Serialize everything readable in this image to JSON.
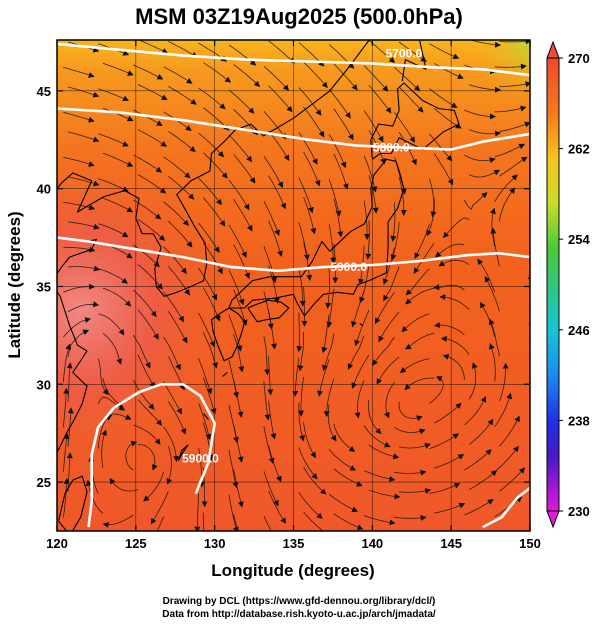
{
  "title": "MSM 03Z19Aug2025 (500.0hPa)",
  "xlabel": "Longitude (degrees)",
  "ylabel": "Latitude  (degrees)",
  "credits": [
    "Drawing by DCL (https://www.gfd-dennou.org/library/dcl/)",
    "Data from http://database.rish.kyoto-u.ac.jp/arch/jmadata/"
  ],
  "map": {
    "lon_range": [
      120,
      150
    ],
    "lat_range": [
      22.5,
      47.6
    ],
    "lon_ticks": [
      120,
      125,
      130,
      135,
      140,
      145,
      150
    ],
    "lat_ticks": [
      25,
      30,
      35,
      40,
      45
    ],
    "lon_tick_labels": [
      "120",
      "125",
      "130",
      "135",
      "140",
      "145",
      "150"
    ],
    "lat_tick_labels": [
      "25",
      "30",
      "35",
      "40",
      "45"
    ]
  },
  "colorbar": {
    "min": 230,
    "max": 270,
    "labels": [
      "270",
      "262",
      "254",
      "246",
      "238",
      "230"
    ],
    "label_values": [
      270,
      262,
      254,
      246,
      238,
      230
    ]
  },
  "contours": [
    {
      "label": "5700.0",
      "value": 5700,
      "label_lon": 142.0,
      "label_lat": 46.7,
      "points": [
        [
          120,
          47.4
        ],
        [
          124,
          47.1
        ],
        [
          128,
          46.8
        ],
        [
          132,
          46.6
        ],
        [
          136,
          46.5
        ],
        [
          140,
          46.4
        ],
        [
          144,
          46.2
        ],
        [
          147,
          46.1
        ],
        [
          150,
          45.8
        ]
      ]
    },
    {
      "label": "5800.0",
      "value": 5800,
      "label_lon": 141.2,
      "label_lat": 41.9,
      "points": [
        [
          120,
          44.1
        ],
        [
          124,
          43.9
        ],
        [
          128,
          43.5
        ],
        [
          132,
          43.0
        ],
        [
          136,
          42.5
        ],
        [
          139,
          42.2
        ],
        [
          142,
          42.1
        ],
        [
          145,
          42.0
        ],
        [
          147,
          42.4
        ],
        [
          150,
          42.8
        ]
      ]
    },
    {
      "label": "5900.0",
      "value": 5900,
      "label_lon": 138.5,
      "label_lat": 35.8,
      "points": [
        [
          120,
          37.5
        ],
        [
          122,
          37.3
        ],
        [
          125,
          36.9
        ],
        [
          128,
          36.5
        ],
        [
          131,
          36.0
        ],
        [
          134,
          35.8
        ],
        [
          137,
          36.0
        ],
        [
          140,
          36.1
        ],
        [
          143,
          36.3
        ],
        [
          146,
          36.6
        ],
        [
          148,
          36.7
        ],
        [
          150,
          36.5
        ]
      ]
    },
    {
      "label": "5900.0",
      "value": 5900,
      "label_lon": 129.1,
      "label_lat": 26.0,
      "points": [
        [
          128.8,
          24.4
        ],
        [
          129.6,
          26.0
        ],
        [
          130.0,
          28.0
        ],
        [
          129.1,
          29.4
        ],
        [
          128.0,
          30.0
        ],
        [
          126.6,
          30.0
        ],
        [
          125.2,
          29.6
        ],
        [
          123.6,
          28.8
        ],
        [
          122.6,
          27.8
        ],
        [
          122.2,
          26.4
        ],
        [
          122.2,
          25.0
        ],
        [
          122.2,
          24.0
        ],
        [
          122.0,
          22.7
        ]
      ]
    },
    {
      "label": "",
      "value": 5900,
      "label_lon": 0,
      "label_lat": 0,
      "points": [
        [
          147.0,
          22.7
        ],
        [
          148.2,
          23.2
        ],
        [
          149.2,
          24.2
        ],
        [
          150,
          24.7
        ]
      ]
    }
  ],
  "colors": {
    "background_field": "#f25a1c",
    "north_field": "#f9a21c",
    "hot_field": "#f0605c",
    "coast": "#000000",
    "contour": "#ffffff"
  }
}
